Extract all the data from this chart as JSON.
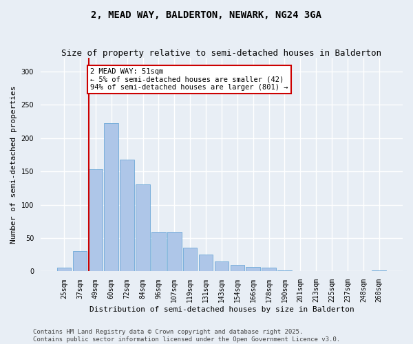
{
  "title": "2, MEAD WAY, BALDERTON, NEWARK, NG24 3GA",
  "subtitle": "Size of property relative to semi-detached houses in Balderton",
  "xlabel": "Distribution of semi-detached houses by size in Balderton",
  "ylabel": "Number of semi-detached properties",
  "categories": [
    "25sqm",
    "37sqm",
    "49sqm",
    "60sqm",
    "72sqm",
    "84sqm",
    "96sqm",
    "107sqm",
    "119sqm",
    "131sqm",
    "143sqm",
    "154sqm",
    "166sqm",
    "178sqm",
    "190sqm",
    "201sqm",
    "213sqm",
    "225sqm",
    "237sqm",
    "248sqm",
    "260sqm"
  ],
  "values": [
    6,
    30,
    153,
    222,
    168,
    130,
    59,
    59,
    36,
    25,
    15,
    10,
    7,
    6,
    2,
    0,
    0,
    0,
    0,
    0,
    2
  ],
  "bar_color": "#aec6e8",
  "bar_edge_color": "#5a9fd4",
  "vline_x": 1.575,
  "vline_color": "#cc0000",
  "annotation_text": "2 MEAD WAY: 51sqm\n← 5% of semi-detached houses are smaller (42)\n94% of semi-detached houses are larger (801) →",
  "annotation_box_color": "#ffffff",
  "annotation_box_edge": "#cc0000",
  "ylim": [
    0,
    320
  ],
  "yticks": [
    0,
    50,
    100,
    150,
    200,
    250,
    300
  ],
  "footer_text": "Contains HM Land Registry data © Crown copyright and database right 2025.\nContains public sector information licensed under the Open Government Licence v3.0.",
  "bg_color": "#e8eef5",
  "plot_bg_color": "#e8eef5",
  "grid_color": "#ffffff",
  "title_fontsize": 10,
  "subtitle_fontsize": 9,
  "axis_label_fontsize": 8,
  "tick_fontsize": 7,
  "footer_fontsize": 6.5,
  "annotation_fontsize": 7.5
}
